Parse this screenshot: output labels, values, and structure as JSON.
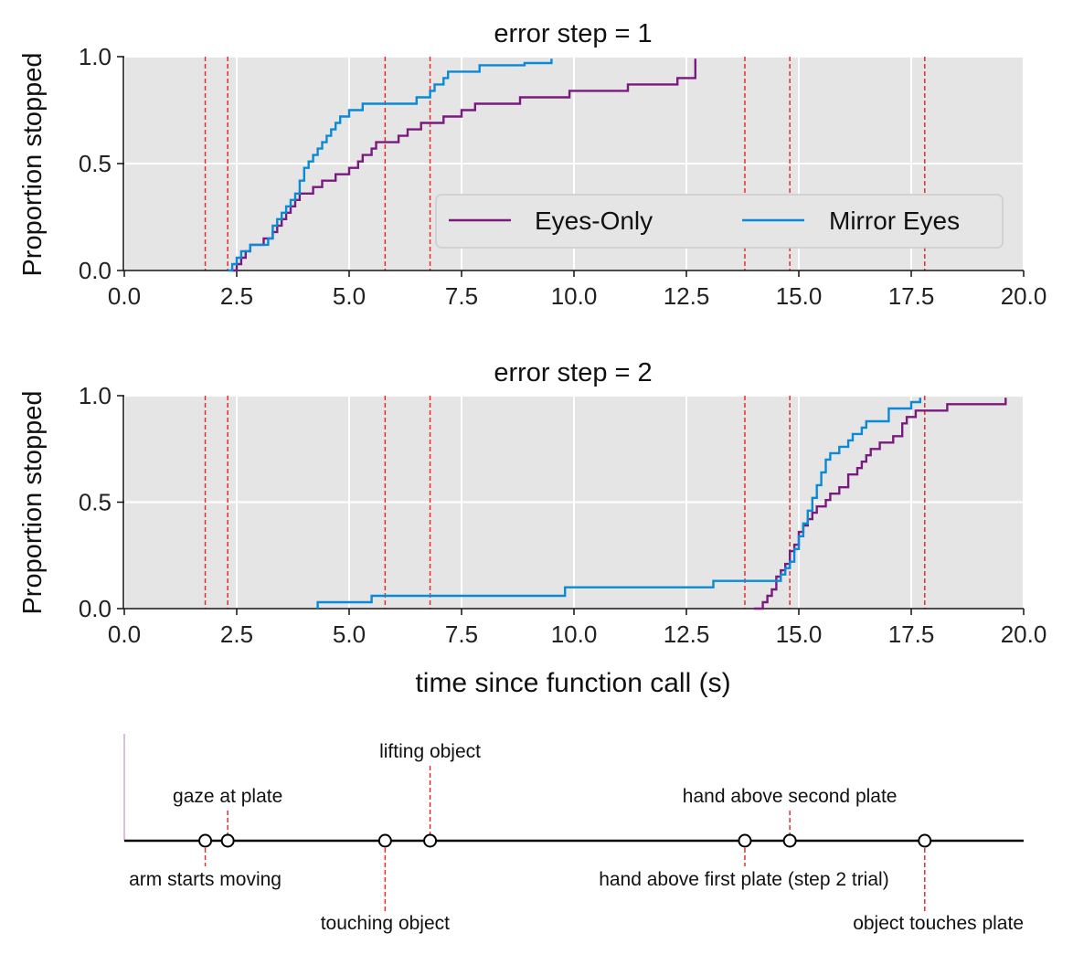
{
  "x_axis_label": "time since function call (s)",
  "colors": {
    "eyes_only": "#7b1a7e",
    "mirror_eyes": "#0a8ad6",
    "event_line": "#e03030",
    "panel_bg": "#e5e5e5",
    "grid": "#ffffff"
  },
  "event_times": [
    1.8,
    2.3,
    5.8,
    6.8,
    13.8,
    14.8,
    17.8
  ],
  "chart_data": [
    {
      "type": "line",
      "title": "error step = 1",
      "ylabel": "Proportion stopped",
      "xlabel": "",
      "xlim": [
        0,
        20
      ],
      "ylim": [
        0,
        1
      ],
      "xticks": [
        "0.0",
        "2.5",
        "5.0",
        "7.5",
        "10.0",
        "12.5",
        "15.0",
        "17.5",
        "20.0"
      ],
      "yticks": [
        "0.0",
        "0.5",
        "1.0"
      ],
      "grid": true,
      "legend_position": "lower-right",
      "series": [
        {
          "name": "Eyes-Only",
          "color": "#7b1a7e",
          "points": [
            [
              2.4,
              0.0
            ],
            [
              2.5,
              0.03
            ],
            [
              2.6,
              0.06
            ],
            [
              2.7,
              0.09
            ],
            [
              2.8,
              0.12
            ],
            [
              3.1,
              0.15
            ],
            [
              3.3,
              0.18
            ],
            [
              3.4,
              0.21
            ],
            [
              3.5,
              0.24
            ],
            [
              3.6,
              0.27
            ],
            [
              3.7,
              0.3
            ],
            [
              3.8,
              0.33
            ],
            [
              3.9,
              0.36
            ],
            [
              4.2,
              0.39
            ],
            [
              4.4,
              0.42
            ],
            [
              4.7,
              0.45
            ],
            [
              5.0,
              0.48
            ],
            [
              5.2,
              0.51
            ],
            [
              5.3,
              0.54
            ],
            [
              5.5,
              0.57
            ],
            [
              5.6,
              0.6
            ],
            [
              6.1,
              0.63
            ],
            [
              6.3,
              0.66
            ],
            [
              6.6,
              0.69
            ],
            [
              7.1,
              0.72
            ],
            [
              7.5,
              0.75
            ],
            [
              7.8,
              0.78
            ],
            [
              8.8,
              0.81
            ],
            [
              9.9,
              0.84
            ],
            [
              11.2,
              0.87
            ],
            [
              12.3,
              0.9
            ],
            [
              12.7,
              0.93
            ],
            [
              12.7,
              0.96
            ],
            [
              12.7,
              0.99
            ]
          ]
        },
        {
          "name": "Mirror Eyes",
          "color": "#0a8ad6",
          "points": [
            [
              2.3,
              0.0
            ],
            [
              2.4,
              0.03
            ],
            [
              2.5,
              0.06
            ],
            [
              2.6,
              0.09
            ],
            [
              2.8,
              0.12
            ],
            [
              3.2,
              0.15
            ],
            [
              3.3,
              0.18
            ],
            [
              3.3,
              0.21
            ],
            [
              3.4,
              0.24
            ],
            [
              3.5,
              0.27
            ],
            [
              3.6,
              0.3
            ],
            [
              3.7,
              0.33
            ],
            [
              3.8,
              0.36
            ],
            [
              3.9,
              0.39
            ],
            [
              3.9,
              0.42
            ],
            [
              4.0,
              0.45
            ],
            [
              4.0,
              0.48
            ],
            [
              4.1,
              0.51
            ],
            [
              4.2,
              0.54
            ],
            [
              4.3,
              0.57
            ],
            [
              4.4,
              0.6
            ],
            [
              4.5,
              0.63
            ],
            [
              4.6,
              0.66
            ],
            [
              4.7,
              0.69
            ],
            [
              4.8,
              0.72
            ],
            [
              5.0,
              0.75
            ],
            [
              5.3,
              0.78
            ],
            [
              6.5,
              0.81
            ],
            [
              6.8,
              0.84
            ],
            [
              6.9,
              0.87
            ],
            [
              7.1,
              0.9
            ],
            [
              7.2,
              0.93
            ],
            [
              7.9,
              0.96
            ],
            [
              8.9,
              0.97
            ],
            [
              9.5,
              0.99
            ]
          ]
        }
      ]
    },
    {
      "type": "line",
      "title": "error step = 2",
      "ylabel": "Proportion stopped",
      "xlabel": "time since function call (s)",
      "xlim": [
        0,
        20
      ],
      "ylim": [
        0,
        1
      ],
      "xticks": [
        "0.0",
        "2.5",
        "5.0",
        "7.5",
        "10.0",
        "12.5",
        "15.0",
        "17.5",
        "20.0"
      ],
      "yticks": [
        "0.0",
        "0.5",
        "1.0"
      ],
      "grid": true,
      "series": [
        {
          "name": "Eyes-Only",
          "color": "#7b1a7e",
          "points": [
            [
              14.0,
              0.0
            ],
            [
              14.2,
              0.03
            ],
            [
              14.3,
              0.06
            ],
            [
              14.4,
              0.09
            ],
            [
              14.5,
              0.12
            ],
            [
              14.5,
              0.15
            ],
            [
              14.6,
              0.18
            ],
            [
              14.7,
              0.21
            ],
            [
              14.8,
              0.24
            ],
            [
              14.8,
              0.27
            ],
            [
              14.9,
              0.3
            ],
            [
              15.0,
              0.33
            ],
            [
              15.0,
              0.36
            ],
            [
              15.1,
              0.39
            ],
            [
              15.2,
              0.42
            ],
            [
              15.3,
              0.45
            ],
            [
              15.4,
              0.48
            ],
            [
              15.6,
              0.51
            ],
            [
              15.7,
              0.54
            ],
            [
              15.9,
              0.57
            ],
            [
              16.1,
              0.6
            ],
            [
              16.1,
              0.63
            ],
            [
              16.3,
              0.66
            ],
            [
              16.4,
              0.69
            ],
            [
              16.5,
              0.72
            ],
            [
              16.6,
              0.75
            ],
            [
              16.8,
              0.78
            ],
            [
              17.1,
              0.81
            ],
            [
              17.3,
              0.84
            ],
            [
              17.3,
              0.87
            ],
            [
              17.4,
              0.9
            ],
            [
              17.6,
              0.93
            ],
            [
              18.3,
              0.96
            ],
            [
              19.6,
              0.99
            ]
          ]
        },
        {
          "name": "Mirror Eyes",
          "color": "#0a8ad6",
          "points": [
            [
              4.3,
              0.0
            ],
            [
              4.3,
              0.03
            ],
            [
              5.5,
              0.06
            ],
            [
              9.8,
              0.1
            ],
            [
              13.1,
              0.13
            ],
            [
              14.6,
              0.16
            ],
            [
              14.7,
              0.19
            ],
            [
              14.8,
              0.22
            ],
            [
              14.9,
              0.25
            ],
            [
              14.9,
              0.28
            ],
            [
              15.0,
              0.31
            ],
            [
              15.0,
              0.34
            ],
            [
              15.1,
              0.37
            ],
            [
              15.1,
              0.4
            ],
            [
              15.2,
              0.43
            ],
            [
              15.2,
              0.46
            ],
            [
              15.3,
              0.49
            ],
            [
              15.3,
              0.52
            ],
            [
              15.4,
              0.55
            ],
            [
              15.4,
              0.58
            ],
            [
              15.5,
              0.61
            ],
            [
              15.5,
              0.64
            ],
            [
              15.6,
              0.67
            ],
            [
              15.6,
              0.7
            ],
            [
              15.7,
              0.73
            ],
            [
              15.9,
              0.76
            ],
            [
              16.1,
              0.79
            ],
            [
              16.2,
              0.82
            ],
            [
              16.4,
              0.85
            ],
            [
              16.5,
              0.88
            ],
            [
              17.0,
              0.91
            ],
            [
              17.0,
              0.94
            ],
            [
              17.5,
              0.97
            ],
            [
              17.7,
              0.99
            ]
          ]
        }
      ]
    },
    {
      "type": "timeline",
      "xlim": [
        0,
        20
      ],
      "events": [
        {
          "time": 1.8,
          "label": "arm starts moving",
          "label_position": "below-near"
        },
        {
          "time": 2.3,
          "label": "gaze at plate",
          "label_position": "above-near"
        },
        {
          "time": 5.8,
          "label": "touching object",
          "label_position": "below-far"
        },
        {
          "time": 6.8,
          "label": "lifting object",
          "label_position": "above-far"
        },
        {
          "time": 13.8,
          "label": "hand above first plate (step 2 trial)",
          "label_position": "below-near"
        },
        {
          "time": 14.8,
          "label": "hand above second plate",
          "label_position": "above-near"
        },
        {
          "time": 17.8,
          "label": "object touches plate",
          "label_position": "below-far"
        }
      ]
    }
  ]
}
